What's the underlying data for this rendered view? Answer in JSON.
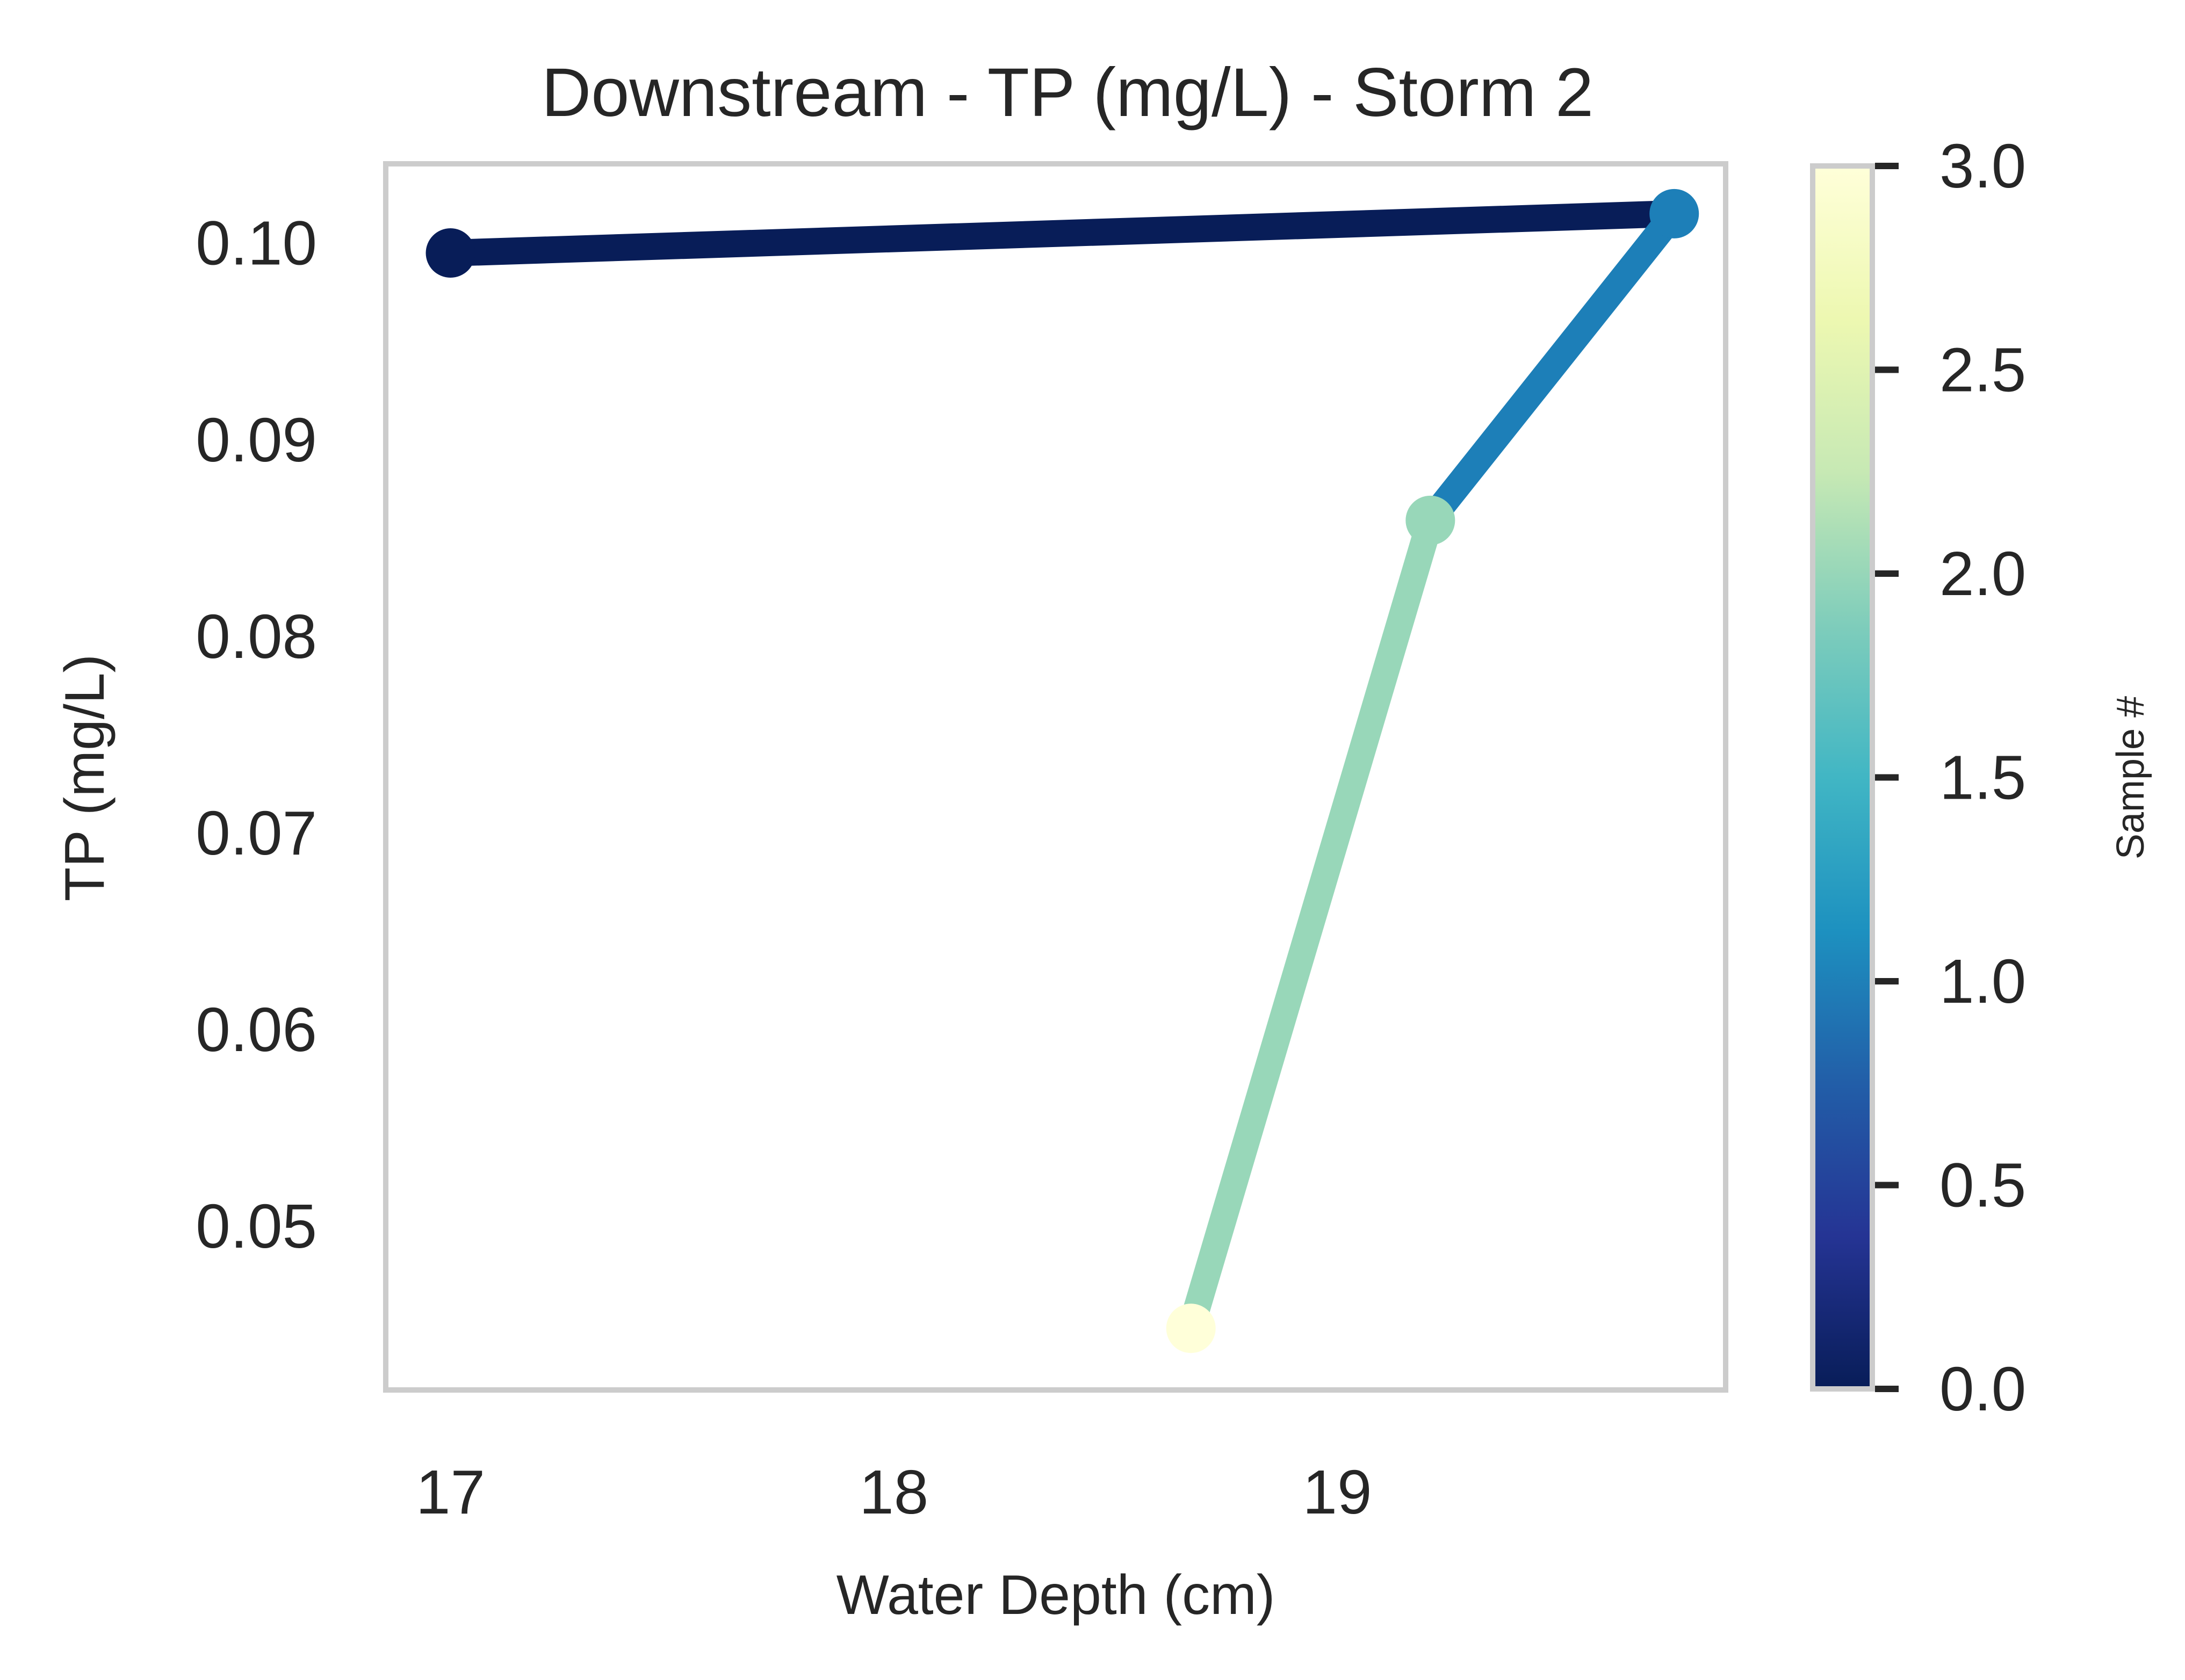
{
  "chart_data": {
    "type": "line",
    "title": "Downstream - TP (mg/L) - Storm 2",
    "xlabel": "Water Depth (cm)",
    "ylabel": "TP (mg/L)",
    "xlim": [
      16.86,
      19.87
    ],
    "ylim": [
      0.0418,
      0.1039
    ],
    "xticks": [
      "17",
      "18",
      "19"
    ],
    "yticks": [
      "0.05",
      "0.06",
      "0.07",
      "0.08",
      "0.09",
      "0.10"
    ],
    "grid": false,
    "points": [
      {
        "x": 17.0,
        "y": 0.0995,
        "sample": 0
      },
      {
        "x": 19.76,
        "y": 0.1015,
        "sample": 1
      },
      {
        "x": 19.21,
        "y": 0.0859,
        "sample": 2
      },
      {
        "x": 18.67,
        "y": 0.0448,
        "sample": 3
      }
    ],
    "colorbar": {
      "label": "Sample #",
      "range": [
        0,
        3
      ],
      "ticks": [
        "0.0",
        "0.5",
        "1.0",
        "1.5",
        "2.0",
        "2.5",
        "3.0"
      ],
      "colormap": "YlGnBu_r",
      "colors": [
        "#081d58",
        "#1d7fb8",
        "#98d7b9",
        "#ffffd9"
      ]
    }
  }
}
